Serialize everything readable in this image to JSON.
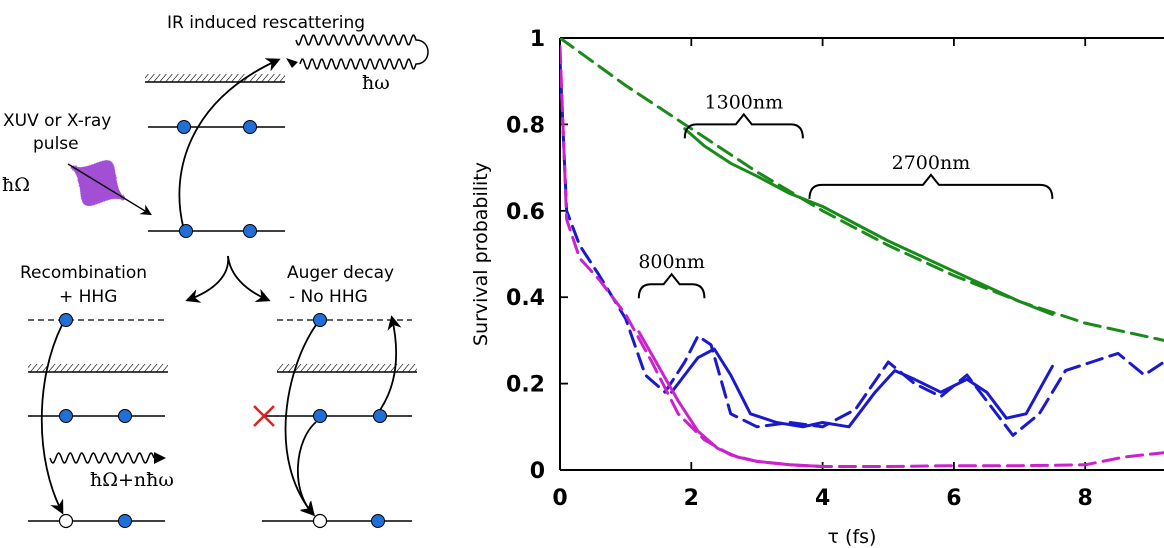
{
  "schematic": {
    "title": "IR induced rescattering",
    "photon_ir": "ħω",
    "pulse_label_line1": "XUV or X-ray",
    "pulse_label_line2": "pulse",
    "photon_xuv": "ħΩ",
    "left_branch_line1": "Recombination",
    "left_branch_line2": "+ HHG",
    "right_branch_line1": "Auger decay",
    "right_branch_line2": "- No HHG",
    "emitted_photon": "ħΩ+nħω",
    "colors": {
      "electron": "#1f6fd6",
      "pulse": "#a24fd6",
      "cross": "#e02020",
      "line": "#000000"
    }
  },
  "chart_data": {
    "type": "line",
    "title": "",
    "xlabel": "τ (fs)",
    "ylabel": "Survival probability",
    "xlim": [
      0,
      9.2
    ],
    "ylim": [
      0,
      1
    ],
    "xticks": [
      "0",
      "2",
      "4",
      "6",
      "8"
    ],
    "yticks": [
      "0",
      "0.2",
      "0.4",
      "0.6",
      "0.8",
      "1"
    ],
    "annotations": [
      {
        "text": "800nm",
        "x_range": [
          1.2,
          2.2
        ],
        "y": 0.43
      },
      {
        "text": "1300nm",
        "x_range": [
          1.9,
          3.7
        ],
        "y": 0.8
      },
      {
        "text": "2700nm",
        "x_range": [
          3.8,
          7.5
        ],
        "y": 0.66
      }
    ],
    "series": [
      {
        "color": "#1a8a1a",
        "style": "dashed",
        "x": [
          0,
          1,
          2,
          3,
          4,
          5,
          6,
          7,
          8,
          9.2
        ],
        "y": [
          1.0,
          0.89,
          0.79,
          0.69,
          0.6,
          0.52,
          0.45,
          0.39,
          0.34,
          0.3
        ]
      },
      {
        "color": "#1a8a1a",
        "style": "solid",
        "x": [
          1.9,
          2.2,
          2.6,
          3.0,
          3.5,
          4.0,
          5.0,
          6.0,
          7.0,
          7.5
        ],
        "y": [
          0.79,
          0.75,
          0.71,
          0.68,
          0.64,
          0.61,
          0.53,
          0.46,
          0.39,
          0.36
        ]
      },
      {
        "color": "#1a1acc",
        "style": "dashed",
        "x": [
          0,
          0.1,
          0.3,
          0.6,
          1.0,
          1.3,
          1.6,
          1.9,
          2.1,
          2.3,
          2.6,
          3.0,
          3.5,
          4.0,
          4.5,
          5.0,
          5.4,
          5.8,
          6.2,
          6.6,
          6.9,
          7.3,
          7.7,
          8.1,
          8.5,
          8.9,
          9.2
        ],
        "y": [
          0.95,
          0.6,
          0.52,
          0.45,
          0.35,
          0.22,
          0.18,
          0.25,
          0.31,
          0.29,
          0.13,
          0.1,
          0.11,
          0.1,
          0.14,
          0.25,
          0.2,
          0.17,
          0.22,
          0.14,
          0.08,
          0.13,
          0.23,
          0.25,
          0.27,
          0.22,
          0.25
        ]
      },
      {
        "color": "#1a1acc",
        "style": "solid",
        "x": [
          1.7,
          1.9,
          2.1,
          2.35,
          2.6,
          2.9,
          3.3,
          3.7,
          4.0,
          4.4,
          4.8,
          5.1,
          5.4,
          5.8,
          6.2,
          6.5,
          6.8,
          7.1,
          7.5
        ],
        "y": [
          0.18,
          0.22,
          0.26,
          0.28,
          0.22,
          0.13,
          0.11,
          0.1,
          0.11,
          0.1,
          0.18,
          0.23,
          0.21,
          0.18,
          0.21,
          0.18,
          0.12,
          0.13,
          0.24
        ]
      },
      {
        "color": "#cc22cc",
        "style": "dashed",
        "x": [
          0,
          0.1,
          0.3,
          0.6,
          1.0,
          1.4,
          1.8,
          2.2,
          2.6,
          3.0,
          3.5,
          4.0,
          5.0,
          6.0,
          7.0,
          8.0,
          8.6,
          9.2
        ],
        "y": [
          0.98,
          0.58,
          0.49,
          0.44,
          0.36,
          0.25,
          0.13,
          0.07,
          0.035,
          0.02,
          0.012,
          0.008,
          0.008,
          0.01,
          0.01,
          0.012,
          0.03,
          0.04
        ]
      },
      {
        "color": "#cc22cc",
        "style": "solid",
        "x": [
          1.2,
          1.5,
          1.8,
          2.1,
          2.4,
          2.7,
          3.0,
          3.5,
          4.0
        ],
        "y": [
          0.32,
          0.24,
          0.16,
          0.09,
          0.05,
          0.03,
          0.02,
          0.012,
          0.008
        ]
      }
    ]
  }
}
